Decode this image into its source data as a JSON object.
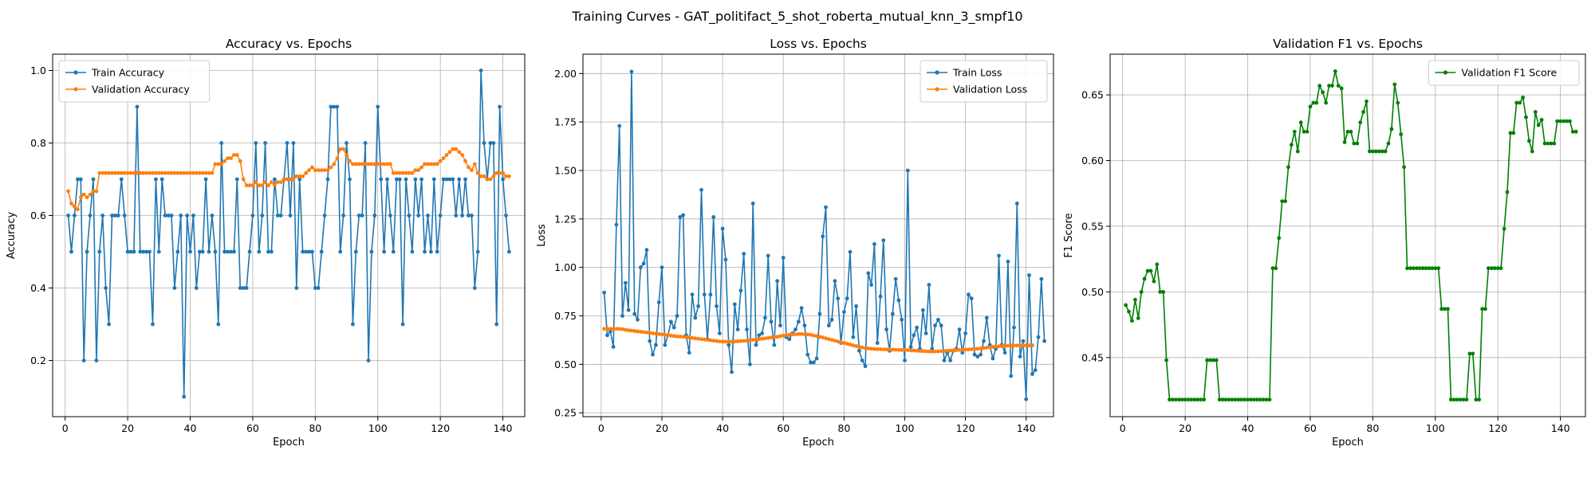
{
  "figure_title": "Training Curves - GAT_politifact_5_shot_roberta_mutual_knn_3_smpf10",
  "colors": {
    "train": "#1f77b4",
    "val": "#ff7f0e",
    "f1": "#008000",
    "grid": "#b0b0b0"
  },
  "chart_data": [
    {
      "type": "line",
      "title": "Accuracy vs. Epochs",
      "xlabel": "Epoch",
      "ylabel": "Accuracy",
      "xlim": [
        -4,
        147
      ],
      "ylim": [
        0.045,
        1.045
      ],
      "xticks": [
        0,
        20,
        40,
        60,
        80,
        100,
        120,
        140
      ],
      "yticks": [
        0.2,
        0.4,
        0.6,
        0.8,
        1.0
      ],
      "ytick_labels": [
        "0.2",
        "0.4",
        "0.6",
        "0.8",
        "1.0"
      ],
      "grid": true,
      "legend_position": "top-left",
      "series": [
        {
          "name": "Train Accuracy",
          "color": "#1f77b4",
          "x_start": 1,
          "values": [
            0.6,
            0.5,
            0.6,
            0.7,
            0.7,
            0.2,
            0.5,
            0.6,
            0.7,
            0.2,
            0.5,
            0.6,
            0.4,
            0.3,
            0.6,
            0.6,
            0.6,
            0.7,
            0.6,
            0.5,
            0.5,
            0.5,
            0.9,
            0.5,
            0.5,
            0.5,
            0.5,
            0.3,
            0.7,
            0.5,
            0.7,
            0.6,
            0.6,
            0.6,
            0.4,
            0.5,
            0.6,
            0.1,
            0.6,
            0.5,
            0.6,
            0.4,
            0.5,
            0.5,
            0.7,
            0.5,
            0.6,
            0.5,
            0.3,
            0.8,
            0.5,
            0.5,
            0.5,
            0.5,
            0.7,
            0.4,
            0.4,
            0.4,
            0.5,
            0.6,
            0.8,
            0.5,
            0.6,
            0.8,
            0.5,
            0.5,
            0.7,
            0.6,
            0.6,
            0.7,
            0.8,
            0.6,
            0.8,
            0.4,
            0.7,
            0.5,
            0.5,
            0.5,
            0.5,
            0.4,
            0.4,
            0.5,
            0.6,
            0.7,
            0.9,
            0.9,
            0.9,
            0.5,
            0.6,
            0.8,
            0.7,
            0.3,
            0.5,
            0.6,
            0.6,
            0.8,
            0.2,
            0.5,
            0.6,
            0.9,
            0.7,
            0.5,
            0.7,
            0.6,
            0.5,
            0.7,
            0.7,
            0.3,
            0.7,
            0.6,
            0.5,
            0.7,
            0.6,
            0.7,
            0.5,
            0.6,
            0.5,
            0.7,
            0.5,
            0.6,
            0.7,
            0.7,
            0.7,
            0.7,
            0.6,
            0.7,
            0.6,
            0.7,
            0.6,
            0.6,
            0.4,
            0.5,
            1.0,
            0.8,
            0.7,
            0.8,
            0.8,
            0.3,
            0.9,
            0.7,
            0.6,
            0.5
          ]
        },
        {
          "name": "Validation Accuracy",
          "color": "#ff7f0e",
          "x_start": 1,
          "values": [
            0.667,
            0.633,
            0.625,
            0.617,
            0.65,
            0.658,
            0.65,
            0.658,
            0.667,
            0.667,
            0.717,
            0.717,
            0.717,
            0.717,
            0.717,
            0.717,
            0.717,
            0.717,
            0.717,
            0.717,
            0.717,
            0.717,
            0.717,
            0.717,
            0.717,
            0.717,
            0.717,
            0.717,
            0.717,
            0.717,
            0.717,
            0.717,
            0.717,
            0.717,
            0.717,
            0.717,
            0.717,
            0.717,
            0.717,
            0.717,
            0.717,
            0.717,
            0.717,
            0.717,
            0.717,
            0.717,
            0.717,
            0.742,
            0.742,
            0.742,
            0.75,
            0.758,
            0.758,
            0.767,
            0.767,
            0.75,
            0.7,
            0.683,
            0.683,
            0.683,
            0.692,
            0.683,
            0.683,
            0.692,
            0.683,
            0.692,
            0.683,
            0.692,
            0.692,
            0.7,
            0.7,
            0.7,
            0.7,
            0.708,
            0.708,
            0.708,
            0.717,
            0.725,
            0.733,
            0.725,
            0.725,
            0.725,
            0.725,
            0.725,
            0.733,
            0.742,
            0.758,
            0.783,
            0.783,
            0.767,
            0.75,
            0.742,
            0.742,
            0.742,
            0.742,
            0.742,
            0.742,
            0.742,
            0.742,
            0.742,
            0.742,
            0.742,
            0.742,
            0.742,
            0.717,
            0.717,
            0.717,
            0.717,
            0.717,
            0.717,
            0.717,
            0.725,
            0.725,
            0.733,
            0.742,
            0.742,
            0.742,
            0.742,
            0.742,
            0.75,
            0.758,
            0.767,
            0.775,
            0.783,
            0.783,
            0.775,
            0.767,
            0.75,
            0.733,
            0.725,
            0.742,
            0.717,
            0.708,
            0.708,
            0.7,
            0.7,
            0.708,
            0.717,
            0.717,
            0.717,
            0.708,
            0.708
          ]
        }
      ]
    },
    {
      "type": "line",
      "title": "Loss vs. Epochs",
      "xlabel": "Epoch",
      "ylabel": "Loss",
      "xlim": [
        -6,
        149
      ],
      "ylim": [
        0.23,
        2.1
      ],
      "xticks": [
        0,
        20,
        40,
        60,
        80,
        100,
        120,
        140
      ],
      "yticks": [
        0.25,
        0.5,
        0.75,
        1.0,
        1.25,
        1.5,
        1.75,
        2.0
      ],
      "ytick_labels": [
        "0.25",
        "0.50",
        "0.75",
        "1.00",
        "1.25",
        "1.50",
        "1.75",
        "2.00"
      ],
      "grid": true,
      "legend_position": "top-right",
      "series": [
        {
          "name": "Train Loss",
          "color": "#1f77b4",
          "x_start": 1,
          "values": [
            0.87,
            0.65,
            0.67,
            0.59,
            1.22,
            1.73,
            0.75,
            0.92,
            0.78,
            2.01,
            0.76,
            0.73,
            1.0,
            1.02,
            1.09,
            0.62,
            0.55,
            0.6,
            0.82,
            1.0,
            0.6,
            0.65,
            0.72,
            0.69,
            0.75,
            1.26,
            1.27,
            0.65,
            0.56,
            0.86,
            0.74,
            0.8,
            1.4,
            0.86,
            0.63,
            0.86,
            1.26,
            0.8,
            0.66,
            1.2,
            1.04,
            0.6,
            0.46,
            0.81,
            0.68,
            0.88,
            1.07,
            0.68,
            0.5,
            1.33,
            0.6,
            0.65,
            0.66,
            0.74,
            1.06,
            0.72,
            0.6,
            0.93,
            0.7,
            1.05,
            0.64,
            0.63,
            0.66,
            0.68,
            0.72,
            0.79,
            0.7,
            0.55,
            0.51,
            0.51,
            0.53,
            0.76,
            1.16,
            1.31,
            0.7,
            0.73,
            0.93,
            0.84,
            0.61,
            0.77,
            0.84,
            1.08,
            0.64,
            0.8,
            0.57,
            0.52,
            0.49,
            0.97,
            0.91,
            1.12,
            0.61,
            0.85,
            1.14,
            0.68,
            0.57,
            0.76,
            0.94,
            0.83,
            0.73,
            0.52,
            1.5,
            0.59,
            0.65,
            0.69,
            0.58,
            0.78,
            0.66,
            0.91,
            0.58,
            0.7,
            0.73,
            0.7,
            0.52,
            0.56,
            0.52,
            0.57,
            0.58,
            0.68,
            0.56,
            0.66,
            0.86,
            0.84,
            0.55,
            0.54,
            0.55,
            0.62,
            0.74,
            0.6,
            0.53,
            0.58,
            1.06,
            0.6,
            0.56,
            1.03,
            0.44,
            0.69,
            1.33,
            0.54,
            0.62,
            0.32,
            0.96,
            0.45,
            0.47,
            0.64,
            0.94,
            0.62
          ]
        },
        {
          "name": "Validation Loss",
          "color": "#ff7f0e",
          "x_start": 1,
          "values": [
            0.683,
            0.683,
            0.683,
            0.683,
            0.683,
            0.683,
            0.681,
            0.678,
            0.676,
            0.674,
            0.672,
            0.67,
            0.668,
            0.666,
            0.664,
            0.662,
            0.66,
            0.658,
            0.656,
            0.654,
            0.652,
            0.65,
            0.648,
            0.646,
            0.644,
            0.643,
            0.642,
            0.64,
            0.638,
            0.636,
            0.634,
            0.632,
            0.63,
            0.628,
            0.626,
            0.624,
            0.622,
            0.62,
            0.618,
            0.617,
            0.617,
            0.617,
            0.617,
            0.618,
            0.619,
            0.62,
            0.621,
            0.622,
            0.624,
            0.626,
            0.628,
            0.63,
            0.632,
            0.634,
            0.636,
            0.638,
            0.64,
            0.642,
            0.645,
            0.648,
            0.65,
            0.652,
            0.654,
            0.655,
            0.656,
            0.656,
            0.655,
            0.654,
            0.652,
            0.649,
            0.646,
            0.642,
            0.638,
            0.634,
            0.63,
            0.626,
            0.622,
            0.618,
            0.614,
            0.61,
            0.606,
            0.602,
            0.598,
            0.594,
            0.59,
            0.587,
            0.584,
            0.582,
            0.58,
            0.579,
            0.578,
            0.578,
            0.577,
            0.577,
            0.576,
            0.576,
            0.575,
            0.575,
            0.574,
            0.574,
            0.573,
            0.572,
            0.571,
            0.57,
            0.569,
            0.568,
            0.567,
            0.566,
            0.566,
            0.566,
            0.567,
            0.568,
            0.569,
            0.57,
            0.571,
            0.572,
            0.573,
            0.574,
            0.575,
            0.576,
            0.577,
            0.578,
            0.579,
            0.58,
            0.582,
            0.584,
            0.586,
            0.588,
            0.59,
            0.592,
            0.593,
            0.594,
            0.595,
            0.596,
            0.596,
            0.597,
            0.597,
            0.598,
            0.598,
            0.598,
            0.598,
            0.598
          ]
        }
      ]
    },
    {
      "type": "line",
      "title": "Validation F1 vs. Epochs",
      "xlabel": "Epoch",
      "ylabel": "F1 Score",
      "xlim": [
        -4,
        148
      ],
      "ylim": [
        0.405,
        0.681
      ],
      "xticks": [
        0,
        20,
        40,
        60,
        80,
        100,
        120,
        140
      ],
      "yticks": [
        0.45,
        0.5,
        0.55,
        0.6,
        0.65
      ],
      "ytick_labels": [
        "0.45",
        "0.50",
        "0.55",
        "0.60",
        "0.65"
      ],
      "grid": true,
      "legend_position": "top-right",
      "series": [
        {
          "name": "Validation F1 Score",
          "color": "#008000",
          "x_start": 1,
          "values": [
            0.49,
            0.485,
            0.478,
            0.494,
            0.48,
            0.5,
            0.51,
            0.516,
            0.516,
            0.508,
            0.521,
            0.5,
            0.5,
            0.448,
            0.418,
            0.418,
            0.418,
            0.418,
            0.418,
            0.418,
            0.418,
            0.418,
            0.418,
            0.418,
            0.418,
            0.418,
            0.448,
            0.448,
            0.448,
            0.448,
            0.418,
            0.418,
            0.418,
            0.418,
            0.418,
            0.418,
            0.418,
            0.418,
            0.418,
            0.418,
            0.418,
            0.418,
            0.418,
            0.418,
            0.418,
            0.418,
            0.418,
            0.518,
            0.518,
            0.541,
            0.569,
            0.569,
            0.595,
            0.612,
            0.622,
            0.607,
            0.629,
            0.622,
            0.622,
            0.641,
            0.644,
            0.644,
            0.657,
            0.652,
            0.644,
            0.657,
            0.657,
            0.668,
            0.657,
            0.655,
            0.614,
            0.622,
            0.622,
            0.613,
            0.613,
            0.629,
            0.637,
            0.645,
            0.607,
            0.607,
            0.607,
            0.607,
            0.607,
            0.607,
            0.613,
            0.624,
            0.658,
            0.644,
            0.62,
            0.595,
            0.518,
            0.518,
            0.518,
            0.518,
            0.518,
            0.518,
            0.518,
            0.518,
            0.518,
            0.518,
            0.518,
            0.487,
            0.487,
            0.487,
            0.418,
            0.418,
            0.418,
            0.418,
            0.418,
            0.418,
            0.453,
            0.453,
            0.418,
            0.418,
            0.487,
            0.487,
            0.518,
            0.518,
            0.518,
            0.518,
            0.518,
            0.548,
            0.576,
            0.621,
            0.621,
            0.644,
            0.644,
            0.648,
            0.633,
            0.615,
            0.607,
            0.637,
            0.627,
            0.631,
            0.613,
            0.613,
            0.613,
            0.613,
            0.63,
            0.63,
            0.63,
            0.63,
            0.63,
            0.622,
            0.622
          ]
        }
      ]
    }
  ]
}
